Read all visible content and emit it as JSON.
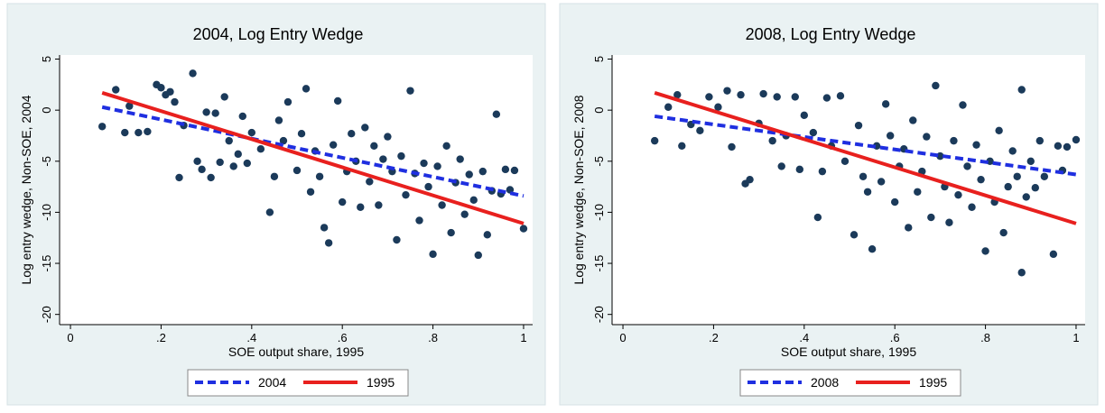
{
  "chart_data": [
    {
      "type": "scatter",
      "title": "2004, Log Entry Wedge",
      "xlabel": "SOE output share, 1995",
      "ylabel": "Log entry wedge, Non-SOE, 2004",
      "xlim": [
        -0.024,
        1.02
      ],
      "ylim": [
        -21,
        5.4
      ],
      "xticks": [
        0,
        {
          "value": 0.2,
          "label": ".2"
        },
        {
          "value": 0.4,
          "label": ".4"
        },
        {
          "value": 0.6,
          "label": ".6"
        },
        {
          "value": 0.8,
          "label": ".8"
        },
        1
      ],
      "yticks": [
        -20,
        -15,
        -10,
        -5,
        0,
        5
      ],
      "points": {
        "color": "#1b3a5a",
        "x": [
          0.07,
          0.1,
          0.12,
          0.13,
          0.15,
          0.17,
          0.19,
          0.2,
          0.21,
          0.22,
          0.23,
          0.24,
          0.25,
          0.27,
          0.28,
          0.29,
          0.3,
          0.31,
          0.32,
          0.33,
          0.34,
          0.35,
          0.36,
          0.37,
          0.38,
          0.39,
          0.4,
          0.42,
          0.44,
          0.45,
          0.46,
          0.47,
          0.48,
          0.5,
          0.51,
          0.52,
          0.53,
          0.54,
          0.55,
          0.56,
          0.57,
          0.58,
          0.59,
          0.6,
          0.61,
          0.62,
          0.63,
          0.64,
          0.65,
          0.66,
          0.67,
          0.68,
          0.69,
          0.7,
          0.71,
          0.72,
          0.73,
          0.74,
          0.75,
          0.76,
          0.77,
          0.78,
          0.79,
          0.8,
          0.81,
          0.82,
          0.83,
          0.84,
          0.85,
          0.86,
          0.87,
          0.88,
          0.89,
          0.9,
          0.91,
          0.92,
          0.93,
          0.94,
          0.95,
          0.96,
          0.97,
          0.98,
          1.0
        ],
        "values": [
          -1.6,
          2.0,
          -2.2,
          0.4,
          -2.2,
          -2.1,
          2.5,
          2.2,
          1.5,
          1.8,
          0.8,
          -6.6,
          -1.5,
          3.6,
          -5,
          -5.8,
          -0.2,
          -6.6,
          -0.3,
          -5.1,
          1.3,
          -3,
          -5.5,
          -4.3,
          -0.6,
          -5.2,
          -2.2,
          -3.8,
          -10,
          -6.5,
          -1,
          -3,
          0.8,
          -5.9,
          -2.3,
          2.1,
          -8,
          -4,
          -6.5,
          -11.5,
          -13,
          -3.4,
          0.9,
          -9,
          -6,
          -2.3,
          -5,
          -9.5,
          -1.7,
          -7,
          -3.5,
          -9.3,
          -4.8,
          -2.6,
          -6,
          -12.7,
          -4.5,
          -8.3,
          1.9,
          -6.2,
          -10.8,
          -5.2,
          -7.5,
          -14.1,
          -5.5,
          -9.3,
          -3.5,
          -12,
          -7.1,
          -4.8,
          -10.2,
          -6.3,
          -8.8,
          -14.2,
          -6,
          -12.2,
          -7.9,
          -0.4,
          -8.2,
          -5.8,
          -7.8,
          -5.9,
          -11.6
        ]
      },
      "series": [
        {
          "name": "2004",
          "color": "#1f2fe0",
          "dashed": true,
          "x": [
            0.07,
            1.0
          ],
          "values": [
            0.3,
            -8.4
          ]
        },
        {
          "name": "1995",
          "color": "#e8201e",
          "dashed": false,
          "x": [
            0.07,
            1.0
          ],
          "values": [
            1.7,
            -11.1
          ]
        }
      ]
    },
    {
      "type": "scatter",
      "title": "2008, Log Entry Wedge",
      "xlabel": "SOE output share, 1995",
      "ylabel": "Log entry wedge, Non-SOE, 2008",
      "xlim": [
        -0.024,
        1.02
      ],
      "ylim": [
        -21,
        5.4
      ],
      "xticks": [
        0,
        {
          "value": 0.2,
          "label": ".2"
        },
        {
          "value": 0.4,
          "label": ".4"
        },
        {
          "value": 0.6,
          "label": ".6"
        },
        {
          "value": 0.8,
          "label": ".8"
        },
        1
      ],
      "yticks": [
        -20,
        -15,
        -10,
        -5,
        0,
        5
      ],
      "points": {
        "color": "#1b3a5a",
        "x": [
          0.07,
          0.1,
          0.12,
          0.13,
          0.15,
          0.17,
          0.19,
          0.21,
          0.23,
          0.24,
          0.26,
          0.27,
          0.28,
          0.3,
          0.31,
          0.33,
          0.34,
          0.35,
          0.36,
          0.38,
          0.39,
          0.4,
          0.42,
          0.43,
          0.44,
          0.45,
          0.46,
          0.48,
          0.49,
          0.51,
          0.52,
          0.53,
          0.54,
          0.55,
          0.56,
          0.57,
          0.58,
          0.59,
          0.6,
          0.61,
          0.62,
          0.63,
          0.64,
          0.65,
          0.66,
          0.67,
          0.68,
          0.69,
          0.7,
          0.71,
          0.72,
          0.73,
          0.74,
          0.75,
          0.76,
          0.77,
          0.78,
          0.79,
          0.8,
          0.81,
          0.82,
          0.83,
          0.84,
          0.85,
          0.86,
          0.87,
          0.88,
          0.88,
          0.89,
          0.9,
          0.91,
          0.92,
          0.93,
          0.95,
          0.96,
          0.97,
          0.98,
          1.0
        ],
        "values": [
          -3,
          0.3,
          1.5,
          -3.5,
          -1.4,
          -2,
          1.3,
          0.3,
          1.9,
          -3.6,
          1.5,
          -7.2,
          -6.8,
          -1.3,
          1.6,
          -3,
          1.3,
          -5.5,
          -2.5,
          1.3,
          -5.8,
          -0.5,
          -2.2,
          -10.5,
          -6,
          1.2,
          -3.5,
          1.4,
          -5,
          -12.2,
          -1.5,
          -6.5,
          -8,
          -13.6,
          -3.5,
          -7,
          0.6,
          -2.5,
          -9,
          -5.5,
          -3.8,
          -11.5,
          -1,
          -8,
          -6,
          -2.6,
          -10.5,
          2.4,
          -4.5,
          -7.5,
          -11,
          -3,
          -8.3,
          0.5,
          -5.5,
          -9.5,
          -3.4,
          -6.8,
          -13.8,
          -5,
          -9,
          -2,
          -12,
          -7.5,
          -4,
          -6.5,
          -15.9,
          2.0,
          -8.5,
          -5,
          -7.6,
          -3,
          -6.5,
          -14.1,
          -3.5,
          -5.9,
          -3.6,
          -2.9
        ]
      },
      "series": [
        {
          "name": "2008",
          "color": "#1f2fe0",
          "dashed": true,
          "x": [
            0.07,
            1.0
          ],
          "values": [
            -0.6,
            -6.3
          ]
        },
        {
          "name": "1995",
          "color": "#e8201e",
          "dashed": false,
          "x": [
            0.07,
            1.0
          ],
          "values": [
            1.7,
            -11.1
          ]
        }
      ]
    }
  ]
}
